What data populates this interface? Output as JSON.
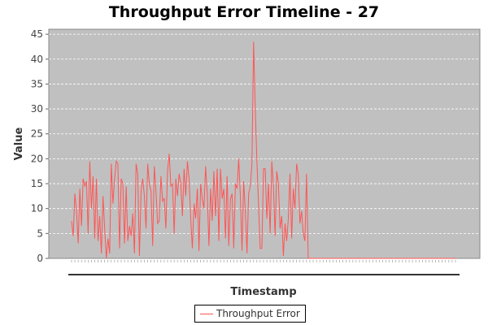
{
  "chart_data": {
    "type": "line",
    "title": "Throughput Error Timeline - 27",
    "xlabel": "Timestamp",
    "ylabel": "Value",
    "ylim": [
      0,
      46
    ],
    "yticks": [
      0,
      5,
      10,
      15,
      20,
      25,
      30,
      35,
      40,
      45
    ],
    "x_tick_labels_visible": false,
    "grid": true,
    "legend_position": "bottom-center",
    "background": "#c0c0c0",
    "series": [
      {
        "name": "Throughput Error",
        "color": "#ff5555",
        "values": [
          7.5,
          4.5,
          13,
          9.5,
          3,
          14,
          6.5,
          16,
          14.5,
          15.5,
          5,
          19.5,
          10,
          16.5,
          4,
          16,
          3.5,
          8.5,
          1,
          12.5,
          6,
          0,
          4,
          1,
          19,
          11,
          16,
          19.5,
          19,
          2,
          16,
          15,
          3,
          14.5,
          3.5,
          6.5,
          4.5,
          9,
          1,
          19,
          17,
          0.5,
          13.5,
          16,
          12.5,
          6,
          19,
          15,
          13.5,
          2.5,
          18.5,
          13.5,
          7,
          7.5,
          16.5,
          11.5,
          12,
          6,
          17.5,
          21,
          14.5,
          15,
          5,
          16,
          12.5,
          17,
          15,
          8.5,
          18,
          12.5,
          19.5,
          16,
          8,
          2,
          11,
          8,
          14,
          1.5,
          15,
          12,
          10,
          18.5,
          13,
          2.5,
          14,
          7.5,
          17.5,
          8.5,
          18,
          3.5,
          18,
          12,
          14,
          4,
          16.5,
          2.5,
          12,
          13,
          2,
          15,
          14,
          20,
          12.5,
          1.5,
          15.5,
          9.5,
          1,
          13,
          14.5,
          19,
          43.5,
          30,
          19.5,
          10.5,
          2,
          2,
          18,
          18,
          8,
          15,
          5,
          19.5,
          14.5,
          4.5,
          17.5,
          15,
          6,
          8.5,
          0.5,
          7,
          3.5,
          8,
          17,
          4,
          14,
          10,
          19,
          17,
          7,
          9.5,
          5,
          3.5,
          17,
          0,
          0,
          0,
          0,
          0,
          0,
          0,
          0,
          0,
          0,
          0,
          0,
          0,
          0,
          0,
          0,
          0,
          0,
          0,
          0,
          0,
          0,
          0,
          0,
          0,
          0,
          0,
          0,
          0,
          0,
          0,
          0,
          0,
          0,
          0,
          0,
          0,
          0,
          0,
          0,
          0,
          0,
          0,
          0,
          0,
          0,
          0,
          0,
          0,
          0,
          0,
          0,
          0,
          0,
          0,
          0,
          0,
          0,
          0,
          0,
          0,
          0,
          0,
          0,
          0,
          0,
          0,
          0,
          0,
          0,
          0,
          0,
          0,
          0,
          0,
          0,
          0,
          0,
          0,
          0,
          0,
          0,
          0,
          0,
          0,
          0,
          0,
          0,
          0,
          0
        ]
      }
    ]
  }
}
